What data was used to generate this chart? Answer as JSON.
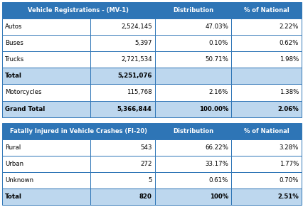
{
  "table1_header": [
    "Vehicle Registrations - (MV-1)",
    "Distribution",
    "% of National"
  ],
  "table1_rows": [
    [
      "Autos",
      "2,524,145",
      "47.03%",
      "2.22%"
    ],
    [
      "Buses",
      "5,397",
      "0.10%",
      "0.62%"
    ],
    [
      "Trucks",
      "2,721,534",
      "50.71%",
      "1.98%"
    ],
    [
      "Total",
      "5,251,076",
      "",
      ""
    ],
    [
      "Motorcycles",
      "115,768",
      "2.16%",
      "1.38%"
    ],
    [
      "Grand Total",
      "5,366,844",
      "100.00%",
      "2.06%"
    ]
  ],
  "table1_bold_rows": [
    3,
    5
  ],
  "table2_header": [
    "Fatally Injured in Vehicle Crashes (FI-20)",
    "Distribution",
    "% of National"
  ],
  "table2_rows": [
    [
      "Rural",
      "543",
      "66.22%",
      "3.28%"
    ],
    [
      "Urban",
      "272",
      "33.17%",
      "1.77%"
    ],
    [
      "Unknown",
      "5",
      "0.61%",
      "0.70%"
    ],
    [
      "Total",
      "820",
      "100%",
      "2.51%"
    ]
  ],
  "table2_bold_rows": [
    3
  ],
  "header_bg": "#2E75B6",
  "header_text": "#FFFFFF",
  "total_bg": "#BDD7EE",
  "normal_bg": "#FFFFFF",
  "border_color": "#2E75B6",
  "text_color": "#000000",
  "fig_width": 4.27,
  "fig_height": 2.91,
  "dpi": 100
}
